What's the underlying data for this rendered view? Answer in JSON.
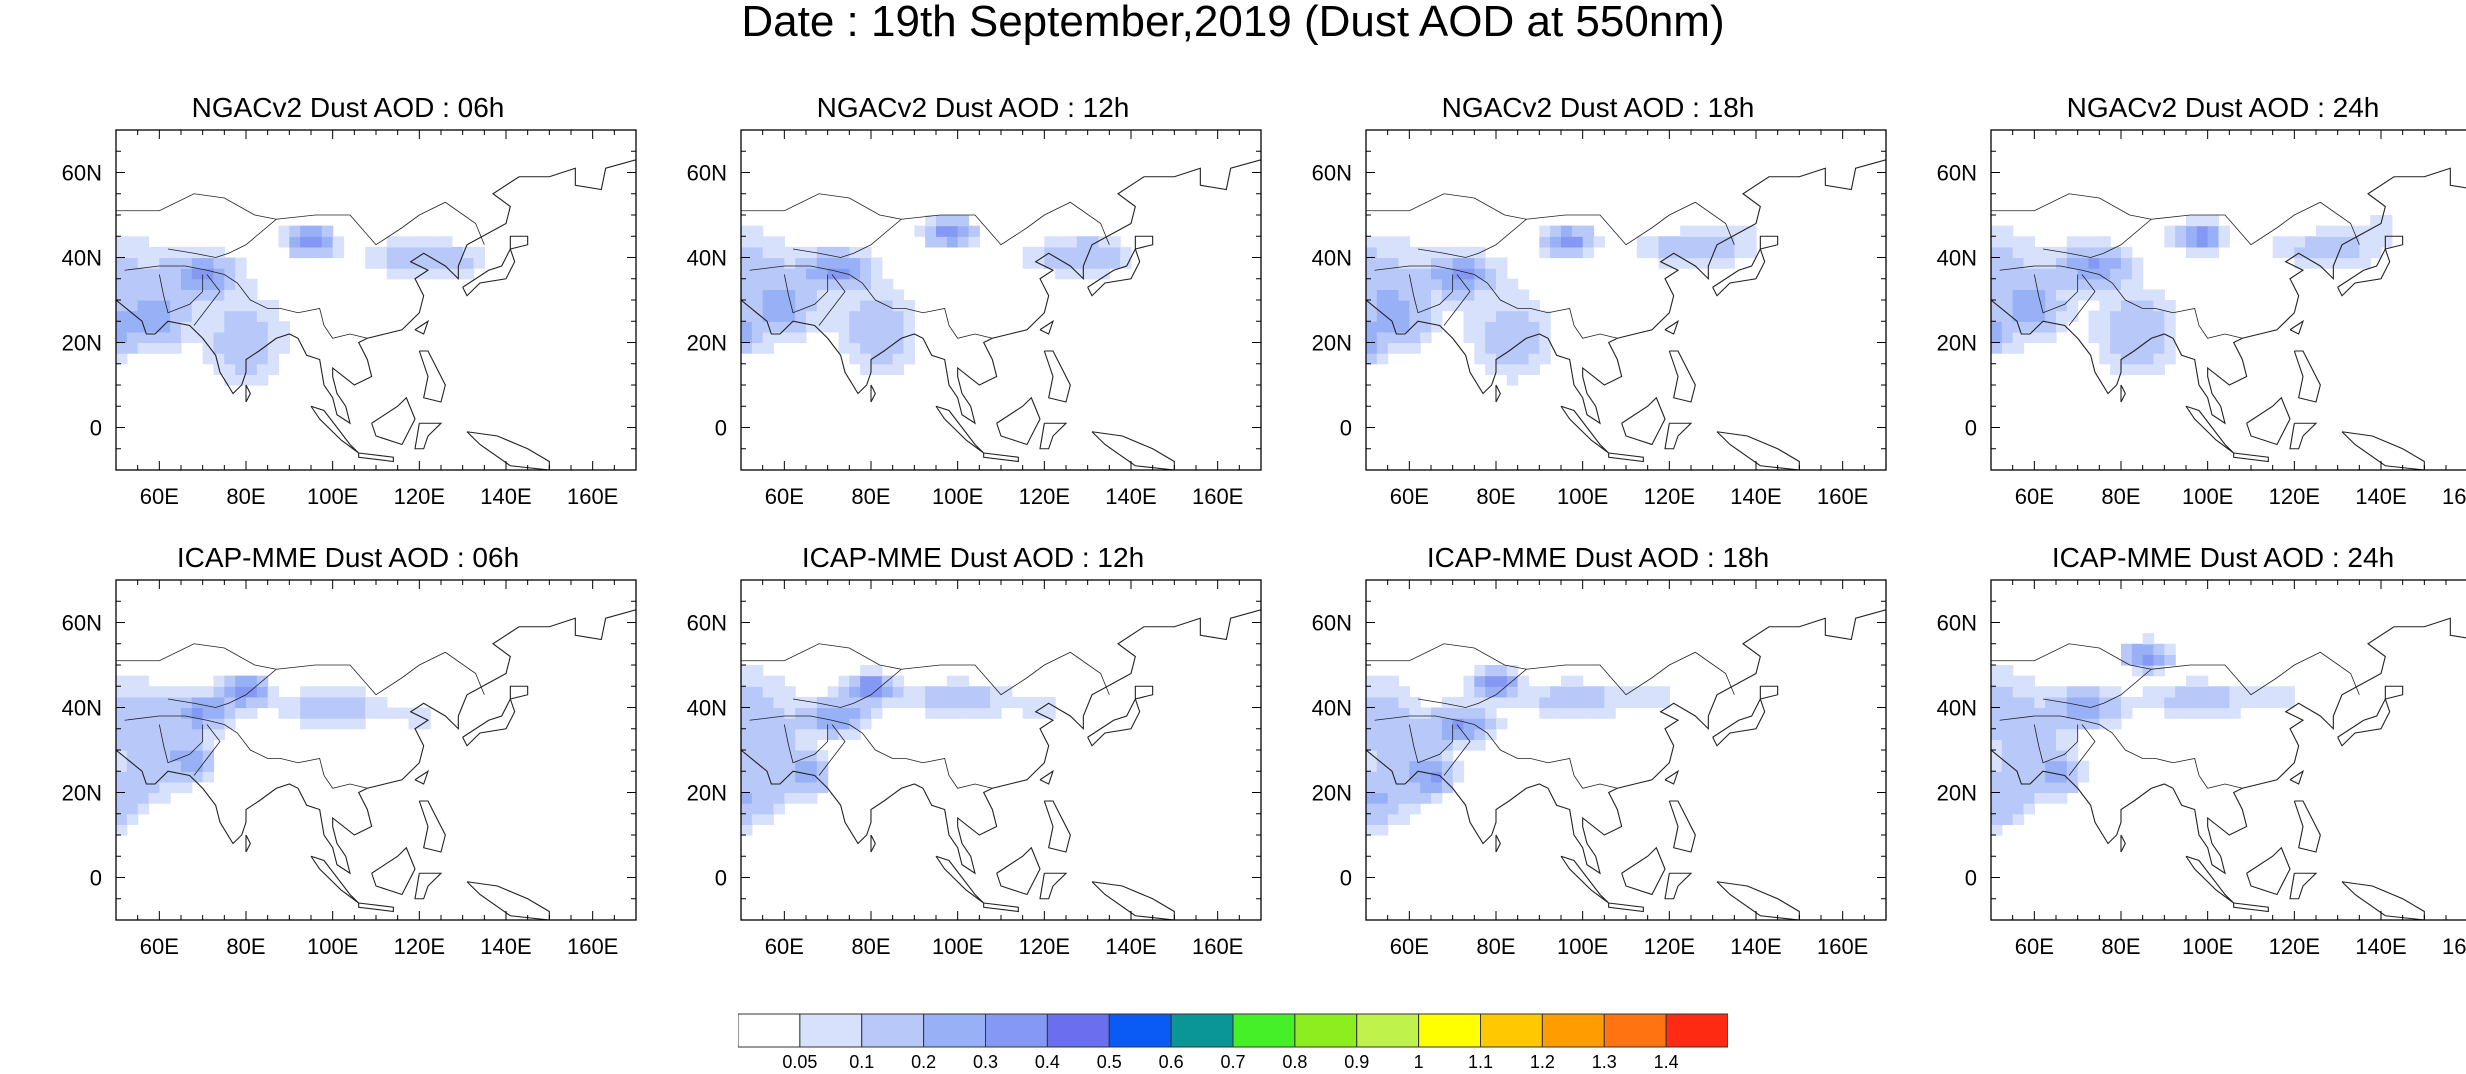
{
  "title": "Date : 19th September,2019 (Dust AOD at 550nm)",
  "x_ticks": [
    "60E",
    "80E",
    "100E",
    "120E",
    "140E",
    "160E"
  ],
  "y_ticks": [
    "60N",
    "40N",
    "20N",
    "0"
  ],
  "panels": [
    {
      "title": "NGACv2 Dust AOD : 06h"
    },
    {
      "title": "NGACv2 Dust AOD : 12h"
    },
    {
      "title": "NGACv2 Dust AOD : 18h"
    },
    {
      "title": "NGACv2 Dust AOD : 24h"
    },
    {
      "title": "ICAP-MME Dust AOD : 06h"
    },
    {
      "title": "ICAP-MME Dust AOD : 12h"
    },
    {
      "title": "ICAP-MME Dust AOD : 18h"
    },
    {
      "title": "ICAP-MME Dust AOD : 24h"
    }
  ],
  "colorbar": {
    "labels": [
      "0.05",
      "0.1",
      "0.2",
      "0.3",
      "0.4",
      "0.5",
      "0.6",
      "0.7",
      "0.8",
      "0.9",
      "1",
      "1.1",
      "1.2",
      "1.3",
      "1.4"
    ],
    "colors": [
      "#ffffff",
      "#d7e1fb",
      "#b8c8f8",
      "#98b0f6",
      "#8598f3",
      "#6a6ff0",
      "#0a5af6",
      "#0a9696",
      "#46f028",
      "#8ced1f",
      "#bff24a",
      "#ffff00",
      "#ffc800",
      "#ff9c00",
      "#ff7410",
      "#ff2a12"
    ]
  },
  "map_extent": {
    "lon": [
      50,
      170
    ],
    "lat": [
      -10,
      70
    ]
  }
}
